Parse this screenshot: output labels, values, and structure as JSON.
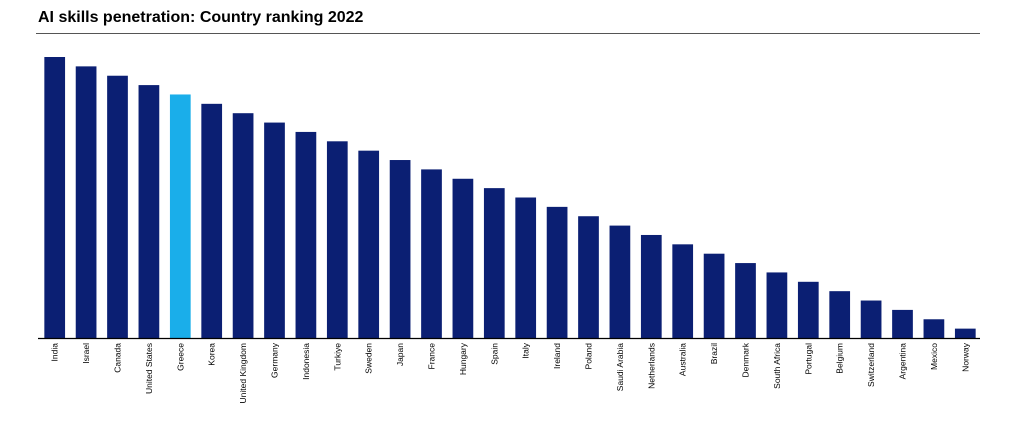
{
  "chart_data": {
    "type": "bar",
    "title": "AI skills penetration: Country ranking 2022",
    "xlabel": "",
    "ylabel": "",
    "categories": [
      "India",
      "Israel",
      "Canada",
      "United States",
      "Greece",
      "Korea",
      "United Kingdom",
      "Germany",
      "Indonesia",
      "Turkiye",
      "Sweden",
      "Japan",
      "France",
      "Hungary",
      "Spain",
      "Italy",
      "Ireland",
      "Poland",
      "Saudi Arabia",
      "Netherlands",
      "Australia",
      "Brazil",
      "Denmark",
      "South Africa",
      "Portugal",
      "Belgium",
      "Switzerland",
      "Argentina",
      "Mexico",
      "Norway"
    ],
    "values": [
      30,
      29,
      28,
      27,
      26,
      25,
      24,
      23,
      22,
      21,
      20,
      19,
      18,
      17,
      16,
      15,
      14,
      13,
      12,
      11,
      10,
      9,
      8,
      7,
      6,
      5,
      4,
      3,
      2,
      1
    ],
    "ylim": [
      0,
      30
    ],
    "grid": false,
    "legend": "none",
    "colors": {
      "default": "#0b1f73",
      "highlight": "#1aaeea",
      "highlight_category": "Greece",
      "axis": "#000000"
    }
  }
}
